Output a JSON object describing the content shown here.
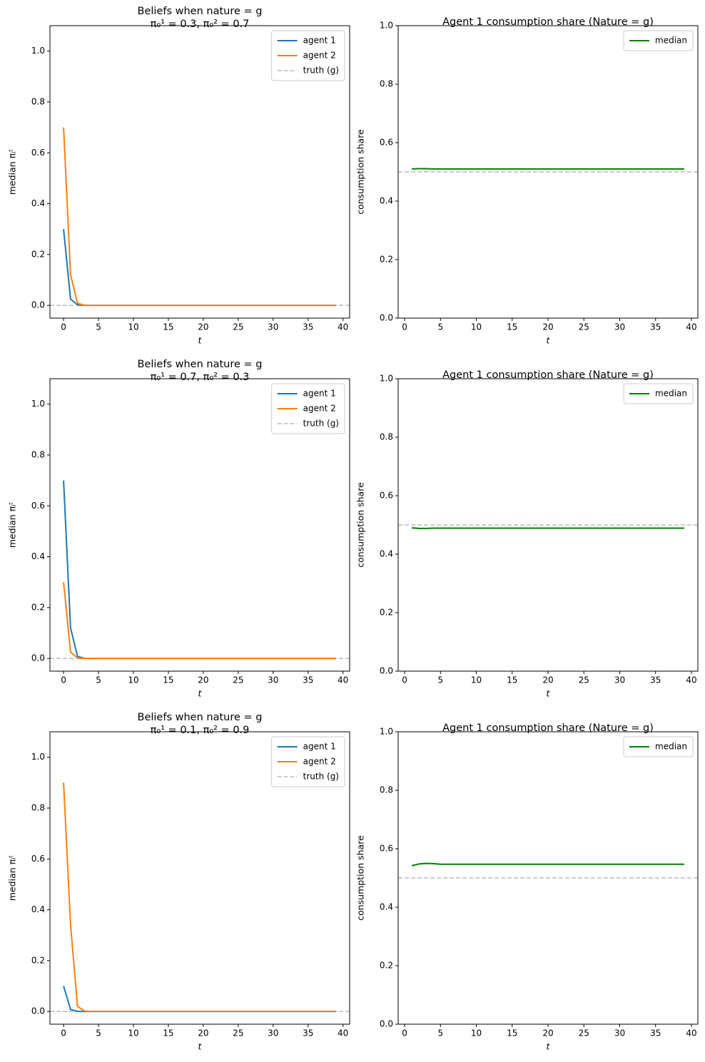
{
  "chart_data": [
    {
      "type": "line",
      "title": "Beliefs when nature = g",
      "subtitle": "π₀¹ = 0.3, π₀² = 0.7",
      "xlabel": "t",
      "ylabel": "median πᵢᵗ",
      "x": [
        0,
        1,
        2,
        3,
        4,
        5,
        6,
        7,
        8,
        9,
        10,
        11,
        12,
        13,
        14,
        15,
        16,
        17,
        18,
        19,
        20,
        21,
        22,
        23,
        24,
        25,
        26,
        27,
        28,
        29,
        30,
        31,
        32,
        33,
        34,
        35,
        36,
        37,
        38,
        39
      ],
      "series": [
        {
          "name": "agent 1",
          "color": "#1f77b4",
          "values": [
            0.3,
            0.025,
            0.002,
            0.0002,
            0,
            0,
            0,
            0,
            0,
            0,
            0,
            0,
            0,
            0,
            0,
            0,
            0,
            0,
            0,
            0,
            0,
            0,
            0,
            0,
            0,
            0,
            0,
            0,
            0,
            0,
            0,
            0,
            0,
            0,
            0,
            0,
            0,
            0,
            0,
            0
          ]
        },
        {
          "name": "agent 2",
          "color": "#ff7f0e",
          "values": [
            0.7,
            0.12,
            0.008,
            0.0005,
            0,
            0,
            0,
            0,
            0,
            0,
            0,
            0,
            0,
            0,
            0,
            0,
            0,
            0,
            0,
            0,
            0,
            0,
            0,
            0,
            0,
            0,
            0,
            0,
            0,
            0,
            0,
            0,
            0,
            0,
            0,
            0,
            0,
            0,
            0,
            0
          ]
        }
      ],
      "hline": {
        "name": "truth (g)",
        "value": 0,
        "color": "#bbbbbb"
      },
      "xlim": [
        -1.95,
        40.95
      ],
      "ylim": [
        -0.05,
        1.1
      ],
      "xticks": [
        0,
        5,
        10,
        15,
        20,
        25,
        30,
        35,
        40
      ],
      "yticks": [
        {
          "value": 0,
          "label": "0.0"
        },
        0.2,
        0.4,
        0.6,
        0.8,
        {
          "value": 1,
          "label": "1.0"
        }
      ],
      "legend": "upper right"
    },
    {
      "type": "line",
      "title": "Agent 1 consumption share (Nature = g)",
      "xlabel": "t",
      "ylabel": "consumption share",
      "x": [
        1,
        2,
        3,
        4,
        5,
        6,
        7,
        8,
        9,
        10,
        11,
        12,
        13,
        14,
        15,
        16,
        17,
        18,
        19,
        20,
        21,
        22,
        23,
        24,
        25,
        26,
        27,
        28,
        29,
        30,
        31,
        32,
        33,
        34,
        35,
        36,
        37,
        38,
        39
      ],
      "series": [
        {
          "name": "median",
          "color": "#008000",
          "values": [
            0.51,
            0.511,
            0.511,
            0.51,
            0.51,
            0.51,
            0.51,
            0.51,
            0.51,
            0.51,
            0.51,
            0.51,
            0.51,
            0.51,
            0.51,
            0.51,
            0.51,
            0.51,
            0.51,
            0.51,
            0.51,
            0.51,
            0.51,
            0.51,
            0.51,
            0.51,
            0.51,
            0.51,
            0.51,
            0.51,
            0.51,
            0.51,
            0.51,
            0.51,
            0.51,
            0.51,
            0.51,
            0.51,
            0.51
          ]
        }
      ],
      "hline": {
        "value": 0.5,
        "color": "#bbbbbb"
      },
      "xlim": [
        -0.9,
        40.9
      ],
      "ylim": [
        0,
        1
      ],
      "xticks": [
        0,
        5,
        10,
        15,
        20,
        25,
        30,
        35,
        40
      ],
      "yticks": [
        {
          "value": 0,
          "label": "0.0"
        },
        0.2,
        0.4,
        0.6,
        0.8,
        {
          "value": 1,
          "label": "1.0"
        }
      ],
      "legend": "upper right"
    },
    {
      "type": "line",
      "title": "Beliefs when nature = g",
      "subtitle": "π₀¹ = 0.7, π₀² = 0.3",
      "xlabel": "t",
      "ylabel": "median πᵢᵗ",
      "x": [
        0,
        1,
        2,
        3,
        4,
        5,
        6,
        7,
        8,
        9,
        10,
        11,
        12,
        13,
        14,
        15,
        16,
        17,
        18,
        19,
        20,
        21,
        22,
        23,
        24,
        25,
        26,
        27,
        28,
        29,
        30,
        31,
        32,
        33,
        34,
        35,
        36,
        37,
        38,
        39
      ],
      "series": [
        {
          "name": "agent 1",
          "color": "#1f77b4",
          "values": [
            0.7,
            0.12,
            0.008,
            0.0005,
            0,
            0,
            0,
            0,
            0,
            0,
            0,
            0,
            0,
            0,
            0,
            0,
            0,
            0,
            0,
            0,
            0,
            0,
            0,
            0,
            0,
            0,
            0,
            0,
            0,
            0,
            0,
            0,
            0,
            0,
            0,
            0,
            0,
            0,
            0,
            0
          ]
        },
        {
          "name": "agent 2",
          "color": "#ff7f0e",
          "values": [
            0.3,
            0.025,
            0.002,
            0.0002,
            0,
            0,
            0,
            0,
            0,
            0,
            0,
            0,
            0,
            0,
            0,
            0,
            0,
            0,
            0,
            0,
            0,
            0,
            0,
            0,
            0,
            0,
            0,
            0,
            0,
            0,
            0,
            0,
            0,
            0,
            0,
            0,
            0,
            0,
            0,
            0
          ]
        }
      ],
      "hline": {
        "name": "truth (g)",
        "value": 0,
        "color": "#bbbbbb"
      },
      "xlim": [
        -1.95,
        40.95
      ],
      "ylim": [
        -0.05,
        1.1
      ],
      "xticks": [
        0,
        5,
        10,
        15,
        20,
        25,
        30,
        35,
        40
      ],
      "yticks": [
        {
          "value": 0,
          "label": "0.0"
        },
        0.2,
        0.4,
        0.6,
        0.8,
        {
          "value": 1,
          "label": "1.0"
        }
      ],
      "legend": "upper right"
    },
    {
      "type": "line",
      "title": "Agent 1 consumption share (Nature = g)",
      "xlabel": "t",
      "ylabel": "consumption share",
      "x": [
        1,
        2,
        3,
        4,
        5,
        6,
        7,
        8,
        9,
        10,
        11,
        12,
        13,
        14,
        15,
        16,
        17,
        18,
        19,
        20,
        21,
        22,
        23,
        24,
        25,
        26,
        27,
        28,
        29,
        30,
        31,
        32,
        33,
        34,
        35,
        36,
        37,
        38,
        39
      ],
      "series": [
        {
          "name": "median",
          "color": "#008000",
          "values": [
            0.49,
            0.488,
            0.488,
            0.489,
            0.489,
            0.489,
            0.489,
            0.489,
            0.489,
            0.489,
            0.489,
            0.489,
            0.489,
            0.489,
            0.489,
            0.489,
            0.489,
            0.489,
            0.489,
            0.489,
            0.489,
            0.489,
            0.489,
            0.489,
            0.489,
            0.489,
            0.489,
            0.489,
            0.489,
            0.489,
            0.489,
            0.489,
            0.489,
            0.489,
            0.489,
            0.489,
            0.489,
            0.489,
            0.489
          ]
        }
      ],
      "hline": {
        "value": 0.5,
        "color": "#bbbbbb"
      },
      "xlim": [
        -0.9,
        40.9
      ],
      "ylim": [
        0,
        1
      ],
      "xticks": [
        0,
        5,
        10,
        15,
        20,
        25,
        30,
        35,
        40
      ],
      "yticks": [
        {
          "value": 0,
          "label": "0.0"
        },
        0.2,
        0.4,
        0.6,
        0.8,
        {
          "value": 1,
          "label": "1.0"
        }
      ],
      "legend": "upper right"
    },
    {
      "type": "line",
      "title": "Beliefs when nature = g",
      "subtitle": "π₀¹ = 0.1, π₀² = 0.9",
      "xlabel": "t",
      "ylabel": "median πᵢᵗ",
      "x": [
        0,
        1,
        2,
        3,
        4,
        5,
        6,
        7,
        8,
        9,
        10,
        11,
        12,
        13,
        14,
        15,
        16,
        17,
        18,
        19,
        20,
        21,
        22,
        23,
        24,
        25,
        26,
        27,
        28,
        29,
        30,
        31,
        32,
        33,
        34,
        35,
        36,
        37,
        38,
        39
      ],
      "series": [
        {
          "name": "agent 1",
          "color": "#1f77b4",
          "values": [
            0.1,
            0.008,
            0.0006,
            0,
            0,
            0,
            0,
            0,
            0,
            0,
            0,
            0,
            0,
            0,
            0,
            0,
            0,
            0,
            0,
            0,
            0,
            0,
            0,
            0,
            0,
            0,
            0,
            0,
            0,
            0,
            0,
            0,
            0,
            0,
            0,
            0,
            0,
            0,
            0,
            0
          ]
        },
        {
          "name": "agent 2",
          "color": "#ff7f0e",
          "values": [
            0.9,
            0.34,
            0.02,
            0.002,
            0,
            0,
            0,
            0,
            0,
            0,
            0,
            0,
            0,
            0,
            0,
            0,
            0,
            0,
            0,
            0,
            0,
            0,
            0,
            0,
            0,
            0,
            0,
            0,
            0,
            0,
            0,
            0,
            0,
            0,
            0,
            0,
            0,
            0,
            0,
            0
          ]
        }
      ],
      "hline": {
        "name": "truth (g)",
        "value": 0,
        "color": "#bbbbbb"
      },
      "xlim": [
        -1.95,
        40.95
      ],
      "ylim": [
        -0.05,
        1.1
      ],
      "xticks": [
        0,
        5,
        10,
        15,
        20,
        25,
        30,
        35,
        40
      ],
      "yticks": [
        {
          "value": 0,
          "label": "0.0"
        },
        0.2,
        0.4,
        0.6,
        0.8,
        {
          "value": 1,
          "label": "1.0"
        }
      ],
      "legend": "upper right"
    },
    {
      "type": "line",
      "title": "Agent 1 consumption share (Nature = g)",
      "xlabel": "t",
      "ylabel": "consumption share",
      "x": [
        1,
        2,
        3,
        4,
        5,
        6,
        7,
        8,
        9,
        10,
        11,
        12,
        13,
        14,
        15,
        16,
        17,
        18,
        19,
        20,
        21,
        22,
        23,
        24,
        25,
        26,
        27,
        28,
        29,
        30,
        31,
        32,
        33,
        34,
        35,
        36,
        37,
        38,
        39
      ],
      "series": [
        {
          "name": "median",
          "color": "#008000",
          "values": [
            0.542,
            0.548,
            0.55,
            0.549,
            0.547,
            0.547,
            0.547,
            0.547,
            0.547,
            0.547,
            0.547,
            0.547,
            0.547,
            0.547,
            0.547,
            0.547,
            0.547,
            0.547,
            0.547,
            0.547,
            0.547,
            0.547,
            0.547,
            0.547,
            0.547,
            0.547,
            0.547,
            0.547,
            0.547,
            0.547,
            0.547,
            0.547,
            0.547,
            0.547,
            0.547,
            0.547,
            0.547,
            0.547,
            0.547
          ]
        }
      ],
      "hline": {
        "value": 0.5,
        "color": "#bbbbbb"
      },
      "xlim": [
        -0.9,
        40.9
      ],
      "ylim": [
        0,
        1
      ],
      "xticks": [
        0,
        5,
        10,
        15,
        20,
        25,
        30,
        35,
        40
      ],
      "yticks": [
        {
          "value": 0,
          "label": "0.0"
        },
        0.2,
        0.4,
        0.6,
        0.8,
        {
          "value": 1,
          "label": "1.0"
        }
      ],
      "legend": "upper right"
    }
  ]
}
